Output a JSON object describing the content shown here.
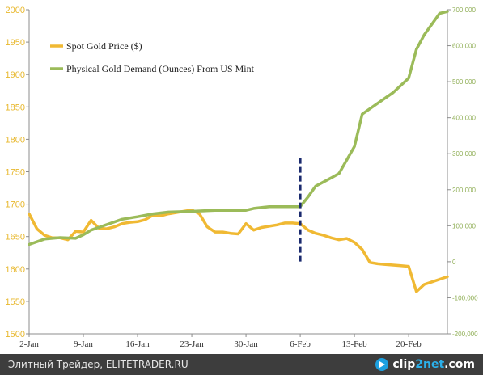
{
  "chart_data": {
    "type": "line",
    "title": "",
    "x_tick_labels": [
      "2-Jan",
      "9-Jan",
      "16-Jan",
      "23-Jan",
      "30-Jan",
      "6-Feb",
      "13-Feb",
      "20-Feb"
    ],
    "x_tick_days": [
      2,
      9,
      16,
      23,
      30,
      37,
      44,
      51
    ],
    "xlim_days": [
      2,
      56
    ],
    "y_left": {
      "ylim": [
        1500,
        2000
      ],
      "ticks": [
        1500,
        1550,
        1600,
        1650,
        1700,
        1750,
        1800,
        1850,
        1900,
        1950,
        2000
      ],
      "tick_labels": [
        "1500",
        "1550",
        "1600",
        "1650",
        "1700",
        "1750",
        "1800",
        "1850",
        "1900",
        "1950",
        "2000"
      ],
      "color": "#e8c03a"
    },
    "y_right": {
      "ylim": [
        -200000,
        700000
      ],
      "ticks": [
        -200000,
        -100000,
        0,
        100000,
        200000,
        300000,
        400000,
        500000,
        600000,
        700000
      ],
      "tick_labels": [
        "-200,000",
        "-100,000",
        "0",
        "100,000",
        "200,000",
        "300,000",
        "400,000",
        "500,000",
        "600,000",
        "700,000"
      ],
      "color": "#9bbb59"
    },
    "legend_position": "top-left",
    "grid": false,
    "series": [
      {
        "name": "Spot Gold Price ($)",
        "axis": "left",
        "color": "#f0b933",
        "x_days": [
          2,
          3,
          4,
          5,
          6,
          7,
          8,
          9,
          10,
          11,
          12,
          13,
          14,
          15,
          16,
          17,
          18,
          19,
          20,
          21,
          22,
          23,
          24,
          25,
          26,
          27,
          28,
          29,
          30,
          31,
          32,
          33,
          34,
          35,
          36,
          37,
          38,
          39,
          40,
          41,
          42,
          43,
          44,
          45,
          46,
          47,
          48,
          49,
          50,
          51,
          52,
          53,
          54,
          55,
          56
        ],
        "values": [
          1685,
          1662,
          1652,
          1648,
          1648,
          1645,
          1658,
          1657,
          1675,
          1663,
          1662,
          1665,
          1670,
          1672,
          1673,
          1676,
          1683,
          1682,
          1685,
          1687,
          1689,
          1691,
          1685,
          1665,
          1657,
          1657,
          1655,
          1654,
          1670,
          1660,
          1664,
          1666,
          1668,
          1671,
          1671,
          1670,
          1660,
          1655,
          1652,
          1648,
          1645,
          1647,
          1641,
          1630,
          1610,
          1608,
          1607,
          1606,
          1605,
          1604,
          1565,
          1576,
          1580,
          1584,
          1588
        ]
      },
      {
        "name": "Physical Gold Demand (Ounces) From US Mint",
        "axis": "right",
        "color": "#9bbb59",
        "x_days": [
          2,
          4,
          6,
          8,
          9,
          10,
          12,
          14,
          16,
          18,
          20,
          23,
          26,
          28,
          30,
          31,
          33,
          35,
          36,
          37,
          38,
          39,
          41,
          42,
          44,
          45,
          47,
          49,
          51,
          52,
          53,
          54,
          55,
          56
        ],
        "values": [
          48000,
          63000,
          67000,
          65000,
          75000,
          88000,
          103000,
          118000,
          125000,
          133000,
          138000,
          140000,
          143000,
          143000,
          143000,
          148000,
          153000,
          153000,
          153000,
          153000,
          180000,
          210000,
          233000,
          245000,
          320000,
          410000,
          440000,
          470000,
          510000,
          590000,
          630000,
          660000,
          690000,
          695000
        ]
      }
    ],
    "annotations": [
      {
        "type": "vertical-dashed-line",
        "x_day": 37,
        "y_left_range": [
          1610,
          1771
        ],
        "color": "#1a2a6e"
      }
    ]
  },
  "footer": {
    "watermark": "Элитный Трейдер, ELITETRADER.RU",
    "logo_text": "clip2net.com",
    "logo_text_main": "clip",
    "logo_text_accent": "2net",
    "logo_text_tail": ".com"
  }
}
